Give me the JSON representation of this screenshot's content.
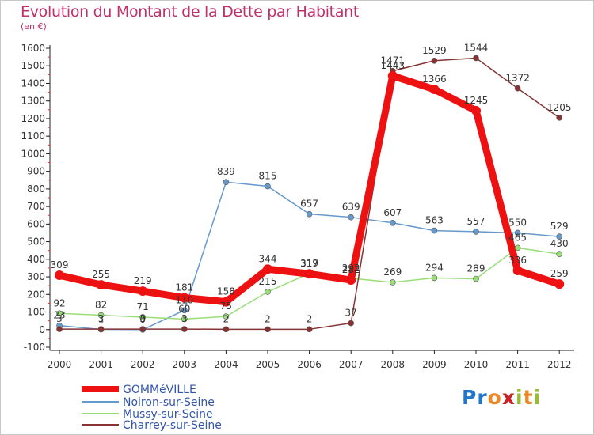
{
  "chart_data": {
    "type": "line",
    "title": "Evolution du Montant de la Dette par Habitant",
    "subtitle": "(en €)",
    "categories": [
      "2000",
      "2001",
      "2002",
      "2003",
      "2004",
      "2005",
      "2006",
      "2007",
      "2008",
      "2009",
      "2010",
      "2011",
      "2012"
    ],
    "ylim": [
      -100,
      1600
    ],
    "yticks": [
      -100,
      0,
      100,
      200,
      300,
      400,
      500,
      600,
      700,
      800,
      900,
      1000,
      1100,
      1200,
      1300,
      1400,
      1500,
      1600
    ],
    "grid": false,
    "legend_position": "bottom-left",
    "series": [
      {
        "name": "GOMMéVILLE",
        "color": "#ee1111",
        "values": [
          309,
          255,
          219,
          181,
          158,
          344,
          317,
          282,
          1443,
          1366,
          1245,
          336,
          259
        ]
      },
      {
        "name": "Noiron-sur-Seine",
        "color": "#6699cc",
        "values": [
          23,
          1,
          0,
          110,
          839,
          815,
          657,
          639,
          607,
          563,
          557,
          550,
          529
        ]
      },
      {
        "name": "Mussy-sur-Seine",
        "color": "#99dd77",
        "values": [
          92,
          82,
          71,
          60,
          75,
          215,
          319,
          292,
          269,
          294,
          289,
          465,
          430
        ]
      },
      {
        "name": "Charrey-sur-Seine",
        "color": "#883333",
        "values": [
          3,
          3,
          3,
          3,
          2,
          2,
          2,
          37,
          1471,
          1529,
          1544,
          1372,
          1205
        ]
      }
    ],
    "data_labels": [
      {
        "series": 0,
        "text": [
          "309",
          "255",
          "219",
          "181",
          "158",
          "344",
          "317",
          "282",
          "1443",
          "1366",
          "1245",
          "336",
          "259"
        ]
      },
      {
        "series": 1,
        "text": [
          "23",
          "1",
          "0",
          "110",
          "839",
          "815",
          "657",
          "639",
          "607",
          "563",
          "557",
          "550",
          "529"
        ]
      },
      {
        "series": 2,
        "text": [
          "92",
          "82",
          "71",
          "60",
          "75",
          "215",
          "319",
          "292",
          "269",
          "294",
          "289",
          "465",
          "430"
        ]
      },
      {
        "series": 3,
        "text": [
          "3",
          "3",
          "3",
          "3",
          "2",
          "2",
          "2",
          "37",
          "1471",
          "1529",
          "1544",
          "1372",
          "1205"
        ]
      }
    ]
  },
  "logo": {
    "letters": [
      "P",
      "r",
      "o",
      "x",
      "i",
      "t",
      "i"
    ],
    "colors": [
      "#2277cc",
      "#2277cc",
      "#ee8822",
      "#cc2222",
      "#99bb33",
      "#ee8822",
      "#99bb33"
    ]
  }
}
